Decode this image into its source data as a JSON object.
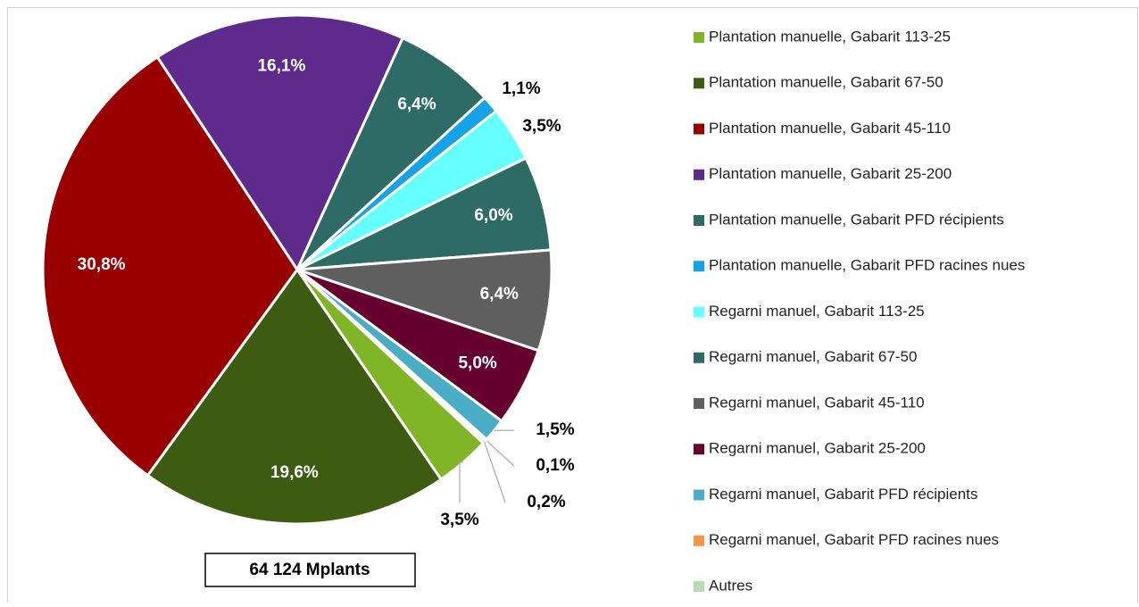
{
  "chart_data": {
    "type": "pie",
    "categories": [
      "Plantation manuelle, Gabarit 113-25",
      "Plantation manuelle, Gabarit 67-50",
      "Plantation manuelle, Gabarit 45-110",
      "Plantation manuelle, Gabarit 25-200",
      "Plantation manuelle, Gabarit PFD récipients",
      "Plantation manuelle, Gabarit PFD racines nues",
      "Regarni manuel, Gabarit 113-25",
      "Regarni manuel, Gabarit 67-50",
      "Regarni manuel, Gabarit 45-110",
      "Regarni manuel, Gabarit 25-200",
      "Regarni manuel, Gabarit PFD récipients",
      "Regarni manuel, Gabarit PFD racines nues",
      "Autres"
    ],
    "values": [
      3.5,
      19.6,
      30.8,
      16.1,
      6.4,
      1.1,
      3.5,
      6.0,
      6.4,
      5.0,
      1.5,
      0.1,
      0.2
    ],
    "value_labels": [
      "3,5%",
      "19,6%",
      "30,8%",
      "16,1%",
      "6,4%",
      "1,1%",
      "3,5%",
      "6,0%",
      "6,4%",
      "5,0%",
      "1,5%",
      "0,1%",
      "0,2%"
    ],
    "colors": [
      "#7fb526",
      "#3e5b12",
      "#990000",
      "#5e2a8c",
      "#2f6b66",
      "#16a2e6",
      "#66ffff",
      "#2f6b66",
      "#5f5f5f",
      "#66002f",
      "#4bacc6",
      "#f79646",
      "#b9d9b9"
    ],
    "total_label": "64  124 Mplants"
  }
}
